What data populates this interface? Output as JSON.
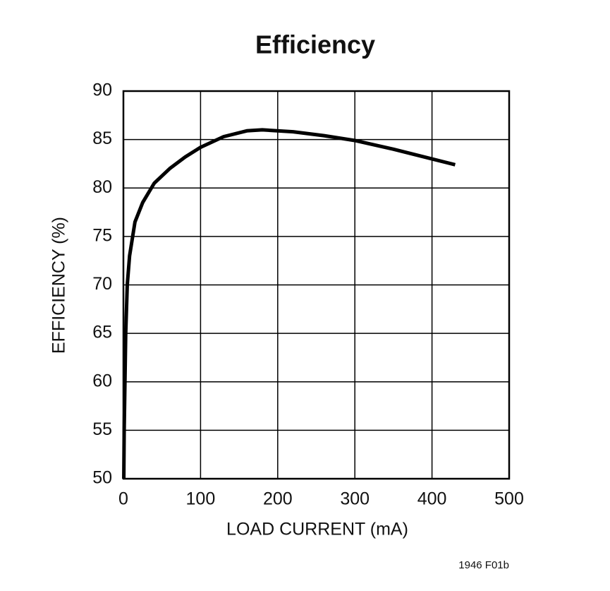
{
  "chart_data": {
    "type": "line",
    "title": "Efficiency",
    "xlabel": "LOAD CURRENT (mA)",
    "ylabel": "EFFICIENCY (%)",
    "note": "1946 F01b",
    "x": [
      0.5,
      1,
      2,
      3,
      5,
      8,
      15,
      25,
      40,
      60,
      80,
      100,
      130,
      160,
      180,
      220,
      260,
      300,
      350,
      400,
      430
    ],
    "values": [
      50,
      55,
      60,
      65,
      70,
      73,
      76.5,
      78.5,
      80.5,
      82,
      83.2,
      84.2,
      85.3,
      85.9,
      86,
      85.8,
      85.4,
      84.9,
      84,
      83,
      82.4
    ],
    "color": "#000000",
    "xlim": [
      0,
      500
    ],
    "xticks": [
      0,
      100,
      200,
      300,
      400,
      500
    ],
    "ylim": [
      50,
      90
    ],
    "yticks": [
      50,
      55,
      60,
      65,
      70,
      75,
      80,
      85,
      90
    ],
    "grid": true
  }
}
